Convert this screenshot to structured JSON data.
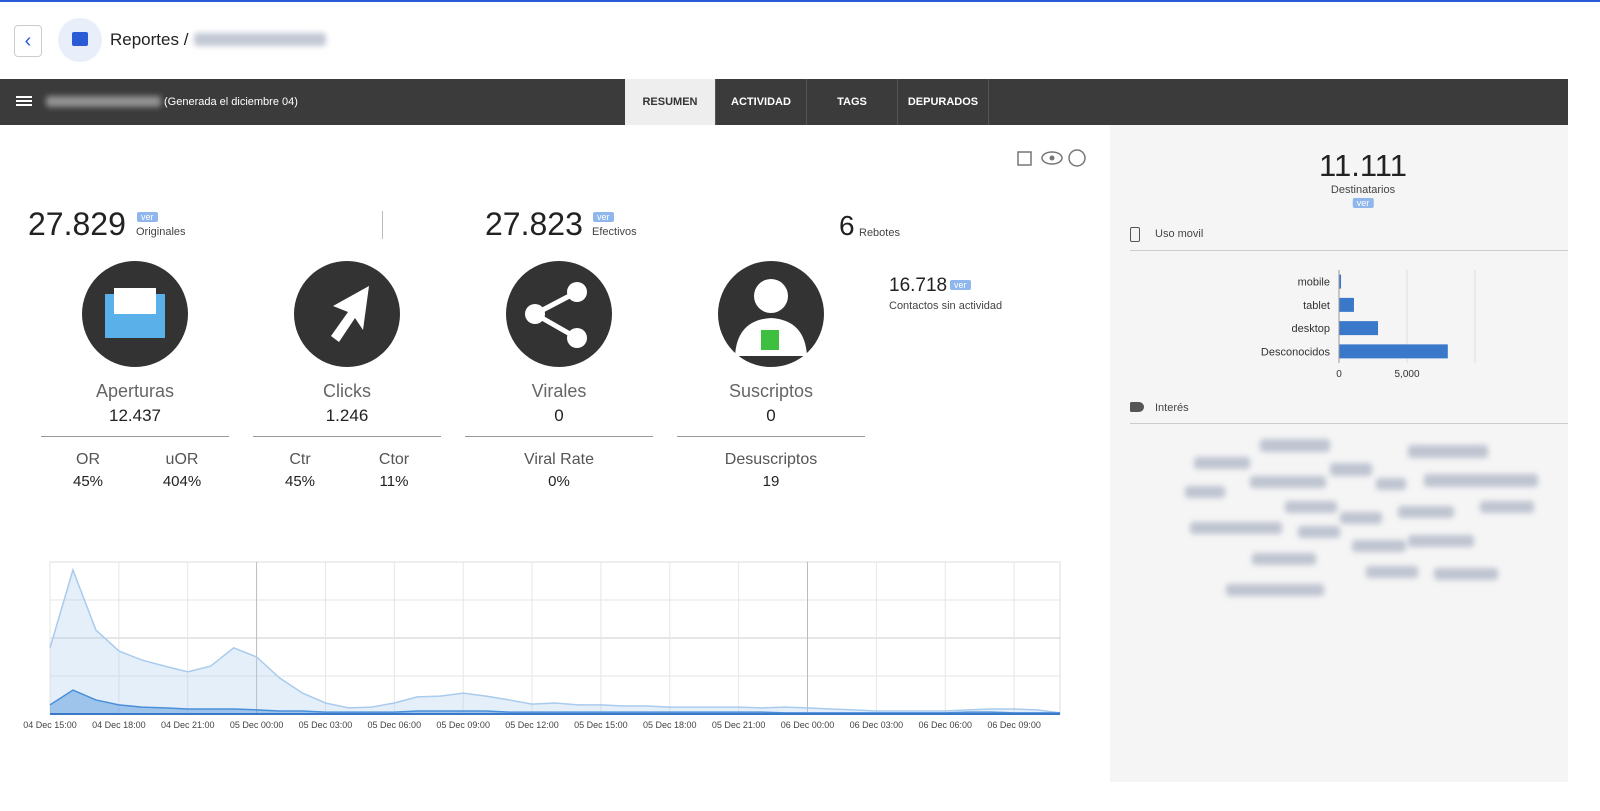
{
  "header": {
    "title": "Reportes /"
  },
  "toolbar": {
    "subtitle": "(Generada el diciembre 04)",
    "tabs": [
      "RESUMEN",
      "ACTIVIDAD",
      "TAGS",
      "DEPURADOS"
    ]
  },
  "totals": [
    {
      "value": "27.829",
      "badge": "ver",
      "label": "Originales"
    },
    {
      "value": "27.823",
      "badge": "ver",
      "label": "Efectivos"
    },
    {
      "value": "6",
      "label": "Rebotes"
    }
  ],
  "inactive": {
    "value": "16.718",
    "badge": "ver",
    "label": "Contactos sin actividad"
  },
  "metrics": [
    {
      "name": "Aperturas",
      "value": "12.437",
      "sub": [
        {
          "label": "OR",
          "value": "45%"
        },
        {
          "label": "uOR",
          "value": "404%"
        }
      ]
    },
    {
      "name": "Clicks",
      "value": "1.246",
      "sub": [
        {
          "label": "Ctr",
          "value": "45%"
        },
        {
          "label": "Ctor",
          "value": "11%"
        }
      ]
    },
    {
      "name": "Virales",
      "value": "0",
      "sub": [
        {
          "label": "Viral Rate",
          "value": "0%"
        }
      ]
    },
    {
      "name": "Suscriptos",
      "value": "0",
      "sub": [
        {
          "label": "Desuscriptos",
          "value": "19"
        }
      ]
    }
  ],
  "side": {
    "recipients": "11.111",
    "recipients_label": "Destinatarios",
    "badge": "ver",
    "mobile_title": "Uso movil",
    "interest_title": "Interés"
  },
  "chart_data": [
    {
      "type": "area",
      "categories": [
        "04 Dec 15:00",
        null,
        null,
        "04 Dec 18:00",
        null,
        null,
        "04 Dec 21:00",
        null,
        null,
        "05 Dec 00:00",
        null,
        null,
        "05 Dec 03:00",
        null,
        null,
        "05 Dec 06:00",
        null,
        null,
        "05 Dec 09:00",
        null,
        null,
        "05 Dec 12:00",
        null,
        null,
        "05 Dec 15:00",
        null,
        null,
        "05 Dec 18:00",
        null,
        null,
        "05 Dec 21:00",
        null,
        null,
        "06 Dec 00:00",
        null,
        null,
        "06 Dec 03:00",
        null,
        null,
        "06 Dec 06:00",
        null,
        null,
        "06 Dec 09:00",
        null,
        null
      ],
      "ylim": [
        0,
        400
      ],
      "grid": true,
      "series": [
        {
          "color": "#a9cbed",
          "values": [
            174,
            379,
            221,
            166,
            142,
            126,
            111,
            126,
            174,
            150,
            95,
            55,
            29,
            16,
            18,
            29,
            45,
            47,
            55,
            47,
            37,
            26,
            29,
            24,
            24,
            21,
            21,
            18,
            18,
            18,
            18,
            16,
            18,
            16,
            13,
            11,
            8,
            8,
            8,
            8,
            11,
            13,
            13,
            11,
            3
          ]
        },
        {
          "color": "#4a90d9",
          "values": [
            24,
            63,
            37,
            24,
            18,
            16,
            13,
            13,
            13,
            11,
            8,
            8,
            5,
            5,
            5,
            5,
            8,
            8,
            8,
            8,
            5,
            5,
            5,
            5,
            5,
            5,
            5,
            5,
            5,
            5,
            5,
            5,
            3,
            3,
            3,
            3,
            3,
            3,
            3,
            3,
            5,
            5,
            3,
            3,
            3
          ]
        }
      ]
    },
    {
      "type": "hbar",
      "categories": [
        "mobile",
        "tablet",
        "desktop",
        "Desconocidos"
      ],
      "values": [
        150,
        1100,
        2870,
        8000
      ],
      "color": "#3a78c9",
      "xlim": [
        0,
        10000
      ],
      "xticks": [
        0,
        {
          "value": 5000,
          "label": "5,000"
        }
      ],
      "grid": true
    }
  ]
}
